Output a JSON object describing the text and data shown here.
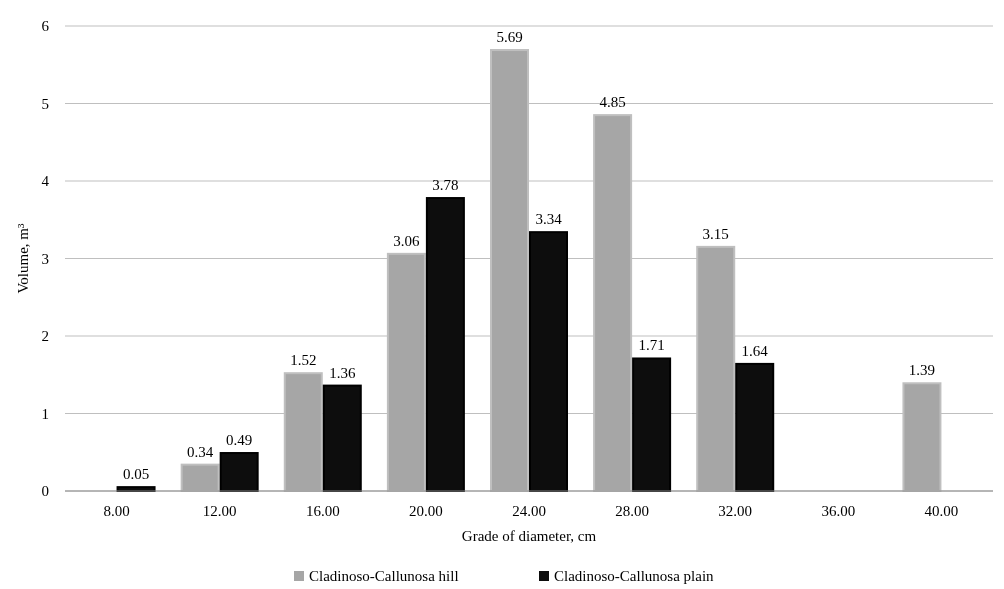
{
  "chart_data": {
    "type": "bar",
    "xlabel": "Grade of diameter, cm",
    "ylabel": "Volume, m³",
    "categories": [
      "8.00",
      "12.00",
      "16.00",
      "20.00",
      "24.00",
      "28.00",
      "32.00",
      "36.00",
      "40.00"
    ],
    "series": [
      {
        "name": "Cladinoso-Callunosa hill",
        "color": "#a6a6a6",
        "values": [
          null,
          0.34,
          1.52,
          3.06,
          5.69,
          4.85,
          3.15,
          null,
          1.39
        ]
      },
      {
        "name": "Cladinoso-Callunosa plain",
        "color": "#0d0d0d",
        "values": [
          0.05,
          0.49,
          1.36,
          3.78,
          3.34,
          1.71,
          1.64,
          null,
          null
        ]
      }
    ],
    "ylim": [
      0,
      6
    ],
    "yticks": [
      0,
      1,
      2,
      3,
      4,
      5,
      6
    ],
    "grid": "y",
    "legend": "bottom",
    "data_labels": true
  }
}
